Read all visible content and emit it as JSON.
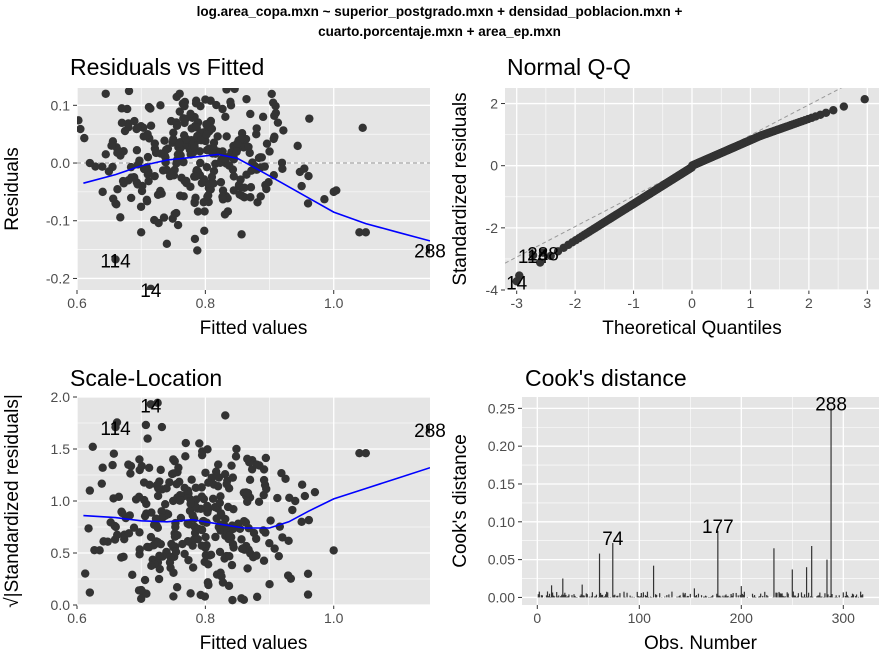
{
  "main_title": {
    "line1": "log.area_copa.mxn ~ superior_postgrado.mxn + densidad_poblacion.mxn +",
    "line2": "cuarto.porcentaje.mxn + area_ep.mxn"
  },
  "colors": {
    "panel_bg": "#e5e5e5",
    "grid": "#ffffff",
    "points": "#333333",
    "smooth": "#0000ff",
    "reference": "#999999"
  },
  "chart_data": [
    {
      "type": "scatter",
      "title": "Residuals vs Fitted",
      "xlabel": "Fitted values",
      "ylabel": "Residuals",
      "xlim": [
        0.6,
        1.15
      ],
      "ylim": [
        -0.22,
        0.13
      ],
      "xticks": [
        "0.6",
        "0.8",
        "1.0"
      ],
      "yticks": [
        "0.1",
        "0.0",
        "-0.1",
        "-0.2"
      ],
      "reference_line": {
        "y": 0,
        "style": "dashed"
      },
      "smooth_line": [
        [
          0.61,
          -0.035
        ],
        [
          0.66,
          -0.02
        ],
        [
          0.7,
          -0.005
        ],
        [
          0.74,
          0.005
        ],
        [
          0.78,
          0.01
        ],
        [
          0.82,
          0.015
        ],
        [
          0.85,
          0.008
        ],
        [
          0.88,
          -0.01
        ],
        [
          0.92,
          -0.035
        ],
        [
          0.96,
          -0.06
        ],
        [
          1.0,
          -0.085
        ],
        [
          1.05,
          -0.105
        ],
        [
          1.1,
          -0.12
        ],
        [
          1.15,
          -0.135
        ]
      ],
      "points_generated": {
        "count": 300,
        "x_center": 0.78,
        "x_spread": 0.08,
        "y_spread": 0.055
      },
      "points": [
        [
          0.62,
          0.0
        ],
        [
          0.64,
          -0.05
        ],
        [
          0.66,
          -0.07
        ],
        [
          0.68,
          -0.03
        ],
        [
          0.71,
          0.05
        ],
        [
          0.73,
          0.1
        ],
        [
          0.76,
          0.12
        ],
        [
          0.8,
          0.11
        ],
        [
          0.84,
          0.1
        ],
        [
          0.88,
          0.06
        ],
        [
          0.9,
          0.02
        ],
        [
          0.92,
          -0.01
        ],
        [
          0.95,
          -0.04
        ],
        [
          0.96,
          -0.07
        ],
        [
          1.0,
          -0.05
        ],
        [
          1.04,
          -0.12
        ],
        [
          1.05,
          -0.12
        ],
        [
          0.74,
          -0.14
        ],
        [
          0.7,
          -0.12
        ],
        [
          0.87,
          0.085
        ],
        [
          0.89,
          0.08
        ]
      ],
      "labeled_points": [
        {
          "label": "114",
          "x": 0.66,
          "y": -0.167
        },
        {
          "label": "14",
          "x": 0.715,
          "y": -0.218
        },
        {
          "label": "288",
          "x": 1.15,
          "y": -0.15
        }
      ]
    },
    {
      "type": "scatter",
      "title": "Normal Q-Q",
      "xlabel": "Theoretical Quantiles",
      "ylabel": "Standardized residuals",
      "xlim": [
        -3.2,
        3.2
      ],
      "ylim": [
        -4.0,
        2.5
      ],
      "xticks": [
        "-3",
        "-2",
        "-1",
        "0",
        "1",
        "2",
        "3"
      ],
      "yticks": [
        "2",
        "0",
        "-2",
        "-4"
      ],
      "reference_line": {
        "slope": 0.98,
        "intercept": 0.0,
        "style": "dashed"
      },
      "labeled_points": [
        {
          "label": "14",
          "x": -3.0,
          "y": -3.72
        },
        {
          "label": "114",
          "x": -2.72,
          "y": -2.88
        },
        {
          "label": "288",
          "x": -2.55,
          "y": -2.8
        }
      ]
    },
    {
      "type": "scatter",
      "title": "Scale-Location",
      "xlabel": "Fitted values",
      "ylabel": "√|Standardized residuals|",
      "xlim": [
        0.6,
        1.15
      ],
      "ylim": [
        0.0,
        2.0
      ],
      "xticks": [
        "0.6",
        "0.8",
        "1.0"
      ],
      "yticks": [
        "2.0",
        "1.5",
        "1.0",
        "0.5",
        "0.0"
      ],
      "smooth_line": [
        [
          0.61,
          0.86
        ],
        [
          0.66,
          0.84
        ],
        [
          0.7,
          0.81
        ],
        [
          0.74,
          0.8
        ],
        [
          0.78,
          0.82
        ],
        [
          0.82,
          0.78
        ],
        [
          0.86,
          0.74
        ],
        [
          0.9,
          0.74
        ],
        [
          0.93,
          0.8
        ],
        [
          0.96,
          0.9
        ],
        [
          1.0,
          1.02
        ],
        [
          1.05,
          1.12
        ],
        [
          1.1,
          1.22
        ],
        [
          1.15,
          1.32
        ]
      ],
      "points_generated": {
        "count": 300,
        "x_center": 0.78,
        "x_spread": 0.08,
        "y_center": 0.8,
        "y_spread": 0.4
      },
      "points": [
        [
          0.62,
          1.1
        ],
        [
          0.62,
          0.12
        ],
        [
          0.64,
          1.32
        ],
        [
          0.68,
          1.35
        ],
        [
          0.71,
          1.6
        ],
        [
          0.75,
          1.4
        ],
        [
          0.82,
          1.35
        ],
        [
          0.88,
          1.35
        ],
        [
          0.9,
          0.2
        ],
        [
          0.92,
          0.65
        ],
        [
          0.94,
          1.0
        ],
        [
          0.95,
          0.8
        ],
        [
          0.96,
          0.1
        ],
        [
          0.96,
          0.3
        ],
        [
          1.04,
          1.46
        ],
        [
          1.05,
          1.46
        ],
        [
          0.86,
          0.05
        ],
        [
          0.7,
          0.06
        ]
      ],
      "labeled_points": [
        {
          "label": "114",
          "x": 0.66,
          "y": 1.71
        },
        {
          "label": "14",
          "x": 0.715,
          "y": 1.93
        },
        {
          "label": "288",
          "x": 1.15,
          "y": 1.69
        }
      ]
    },
    {
      "type": "bar",
      "title": "Cook's distance",
      "xlabel": "Obs. Number",
      "ylabel": "Cook's distance",
      "xlim": [
        -15,
        335
      ],
      "ylim": [
        -0.01,
        0.265
      ],
      "xticks": [
        "0",
        "100",
        "200",
        "300"
      ],
      "yticks": [
        "0.25",
        "0.20",
        "0.15",
        "0.10",
        "0.05",
        "0.00"
      ],
      "n_obs": 320,
      "spikes": [
        {
          "x": 288,
          "y": 0.25,
          "label": "288"
        },
        {
          "x": 177,
          "y": 0.088,
          "label": "177"
        },
        {
          "x": 74,
          "y": 0.072,
          "label": "74"
        },
        {
          "x": 269,
          "y": 0.068
        },
        {
          "x": 232,
          "y": 0.065
        },
        {
          "x": 61,
          "y": 0.058
        },
        {
          "x": 284,
          "y": 0.05
        },
        {
          "x": 264,
          "y": 0.04
        },
        {
          "x": 250,
          "y": 0.037
        },
        {
          "x": 114,
          "y": 0.042
        },
        {
          "x": 25,
          "y": 0.025
        },
        {
          "x": 14,
          "y": 0.016
        },
        {
          "x": 200,
          "y": 0.015
        },
        {
          "x": 44,
          "y": 0.017
        },
        {
          "x": 154,
          "y": 0.012
        }
      ]
    }
  ]
}
